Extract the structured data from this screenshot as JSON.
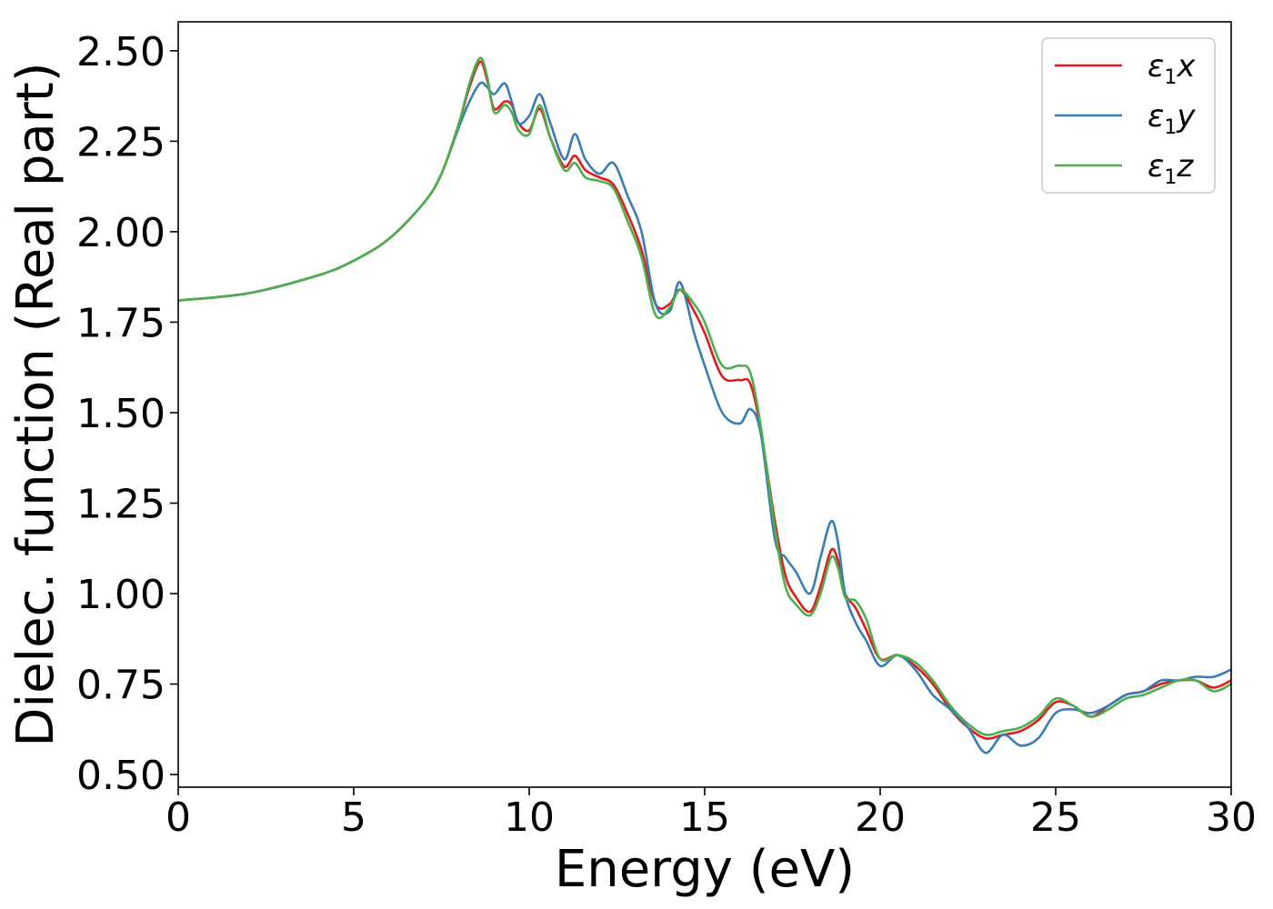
{
  "chart_data": {
    "type": "line",
    "title": "",
    "xlabel": "Energy (eV)",
    "ylabel": "Dielec. function (Real part)",
    "xlim": [
      0,
      30
    ],
    "ylim": [
      0.465,
      2.58
    ],
    "xticks": [
      0,
      5,
      10,
      15,
      20,
      25,
      30
    ],
    "xtick_labels": [
      "0",
      "5",
      "10",
      "15",
      "20",
      "25",
      "30"
    ],
    "yticks": [
      0.5,
      0.75,
      1.0,
      1.25,
      1.5,
      1.75,
      2.0,
      2.25,
      2.5
    ],
    "ytick_labels": [
      "0.50",
      "0.75",
      "1.00",
      "1.25",
      "1.50",
      "1.75",
      "2.00",
      "2.25",
      "2.50"
    ],
    "grid": false,
    "legend_position": "top-right",
    "series": [
      {
        "name": "ε1x",
        "legend_base": "ε",
        "legend_sub": "1",
        "legend_var": "x",
        "color": "#e41a1c",
        "x": [
          0,
          2,
          4,
          5,
          6,
          7,
          7.5,
          8,
          8.3,
          8.6,
          8.8,
          9.0,
          9.3,
          9.5,
          9.7,
          10.0,
          10.3,
          10.6,
          11.0,
          11.3,
          11.6,
          12.0,
          12.4,
          12.8,
          13.2,
          13.6,
          14.0,
          14.3,
          14.7,
          15.0,
          15.5,
          16.0,
          16.3,
          16.6,
          17.0,
          17.3,
          17.6,
          18.0,
          18.3,
          18.6,
          18.8,
          19.0,
          19.3,
          19.6,
          20.0,
          20.5,
          21.0,
          21.5,
          22.0,
          22.5,
          23.0,
          23.5,
          24.0,
          24.5,
          25.0,
          25.5,
          26.0,
          26.5,
          27.0,
          27.5,
          28.0,
          28.5,
          29.0,
          29.5,
          30.0
        ],
        "y": [
          1.81,
          1.83,
          1.88,
          1.92,
          1.98,
          2.08,
          2.16,
          2.3,
          2.4,
          2.47,
          2.42,
          2.34,
          2.36,
          2.35,
          2.3,
          2.28,
          2.34,
          2.26,
          2.18,
          2.21,
          2.17,
          2.15,
          2.13,
          2.05,
          1.95,
          1.8,
          1.8,
          1.84,
          1.78,
          1.72,
          1.6,
          1.59,
          1.58,
          1.45,
          1.2,
          1.05,
          0.99,
          0.95,
          1.02,
          1.12,
          1.09,
          1.0,
          0.96,
          0.9,
          0.82,
          0.83,
          0.8,
          0.75,
          0.68,
          0.63,
          0.6,
          0.61,
          0.62,
          0.65,
          0.7,
          0.69,
          0.66,
          0.69,
          0.72,
          0.73,
          0.75,
          0.76,
          0.76,
          0.74,
          0.76
        ]
      },
      {
        "name": "ε1y",
        "legend_base": "ε",
        "legend_sub": "1",
        "legend_var": "y",
        "color": "#377eb8",
        "x": [
          0,
          2,
          4,
          5,
          6,
          7,
          7.5,
          8,
          8.3,
          8.6,
          8.8,
          9.0,
          9.3,
          9.5,
          9.7,
          10.0,
          10.3,
          10.6,
          11.0,
          11.3,
          11.6,
          12.0,
          12.4,
          12.8,
          13.2,
          13.6,
          14.0,
          14.3,
          14.7,
          15.0,
          15.5,
          16.0,
          16.3,
          16.6,
          17.0,
          17.3,
          17.6,
          18.0,
          18.3,
          18.6,
          18.8,
          19.0,
          19.3,
          19.6,
          20.0,
          20.5,
          21.0,
          21.5,
          22.0,
          22.5,
          23.0,
          23.5,
          24.0,
          24.5,
          25.0,
          25.5,
          26.0,
          26.5,
          27.0,
          27.5,
          28.0,
          28.5,
          29.0,
          29.5,
          30.0
        ],
        "y": [
          1.81,
          1.83,
          1.88,
          1.92,
          1.98,
          2.08,
          2.16,
          2.29,
          2.36,
          2.41,
          2.4,
          2.38,
          2.41,
          2.36,
          2.3,
          2.32,
          2.38,
          2.3,
          2.2,
          2.27,
          2.2,
          2.16,
          2.19,
          2.1,
          2.0,
          1.8,
          1.78,
          1.86,
          1.72,
          1.63,
          1.5,
          1.47,
          1.51,
          1.44,
          1.15,
          1.1,
          1.06,
          1.0,
          1.1,
          1.2,
          1.14,
          1.0,
          0.92,
          0.87,
          0.8,
          0.83,
          0.79,
          0.72,
          0.68,
          0.63,
          0.56,
          0.61,
          0.58,
          0.6,
          0.67,
          0.68,
          0.67,
          0.69,
          0.72,
          0.73,
          0.76,
          0.76,
          0.77,
          0.77,
          0.79
        ]
      },
      {
        "name": "ε1z",
        "legend_base": "ε",
        "legend_sub": "1",
        "legend_var": "z",
        "color": "#4daf4a",
        "x": [
          0,
          2,
          4,
          5,
          6,
          7,
          7.5,
          8,
          8.3,
          8.6,
          8.8,
          9.0,
          9.3,
          9.5,
          9.7,
          10.0,
          10.3,
          10.6,
          11.0,
          11.3,
          11.6,
          12.0,
          12.4,
          12.8,
          13.2,
          13.6,
          14.0,
          14.3,
          14.7,
          15.0,
          15.5,
          16.0,
          16.3,
          16.6,
          17.0,
          17.3,
          17.6,
          18.0,
          18.3,
          18.6,
          18.8,
          19.0,
          19.3,
          19.6,
          20.0,
          20.5,
          21.0,
          21.5,
          22.0,
          22.5,
          23.0,
          23.5,
          24.0,
          24.5,
          25.0,
          25.5,
          26.0,
          26.5,
          27.0,
          27.5,
          28.0,
          28.5,
          29.0,
          29.5,
          30.0
        ],
        "y": [
          1.81,
          1.83,
          1.88,
          1.92,
          1.98,
          2.08,
          2.16,
          2.3,
          2.41,
          2.48,
          2.43,
          2.33,
          2.35,
          2.33,
          2.28,
          2.27,
          2.35,
          2.26,
          2.17,
          2.19,
          2.15,
          2.14,
          2.12,
          2.03,
          1.93,
          1.77,
          1.79,
          1.84,
          1.8,
          1.75,
          1.63,
          1.63,
          1.61,
          1.46,
          1.18,
          1.02,
          0.97,
          0.94,
          1.0,
          1.1,
          1.07,
          0.99,
          0.98,
          0.93,
          0.82,
          0.83,
          0.81,
          0.76,
          0.69,
          0.64,
          0.61,
          0.62,
          0.63,
          0.66,
          0.71,
          0.69,
          0.66,
          0.68,
          0.71,
          0.72,
          0.74,
          0.76,
          0.76,
          0.73,
          0.75
        ]
      }
    ]
  }
}
